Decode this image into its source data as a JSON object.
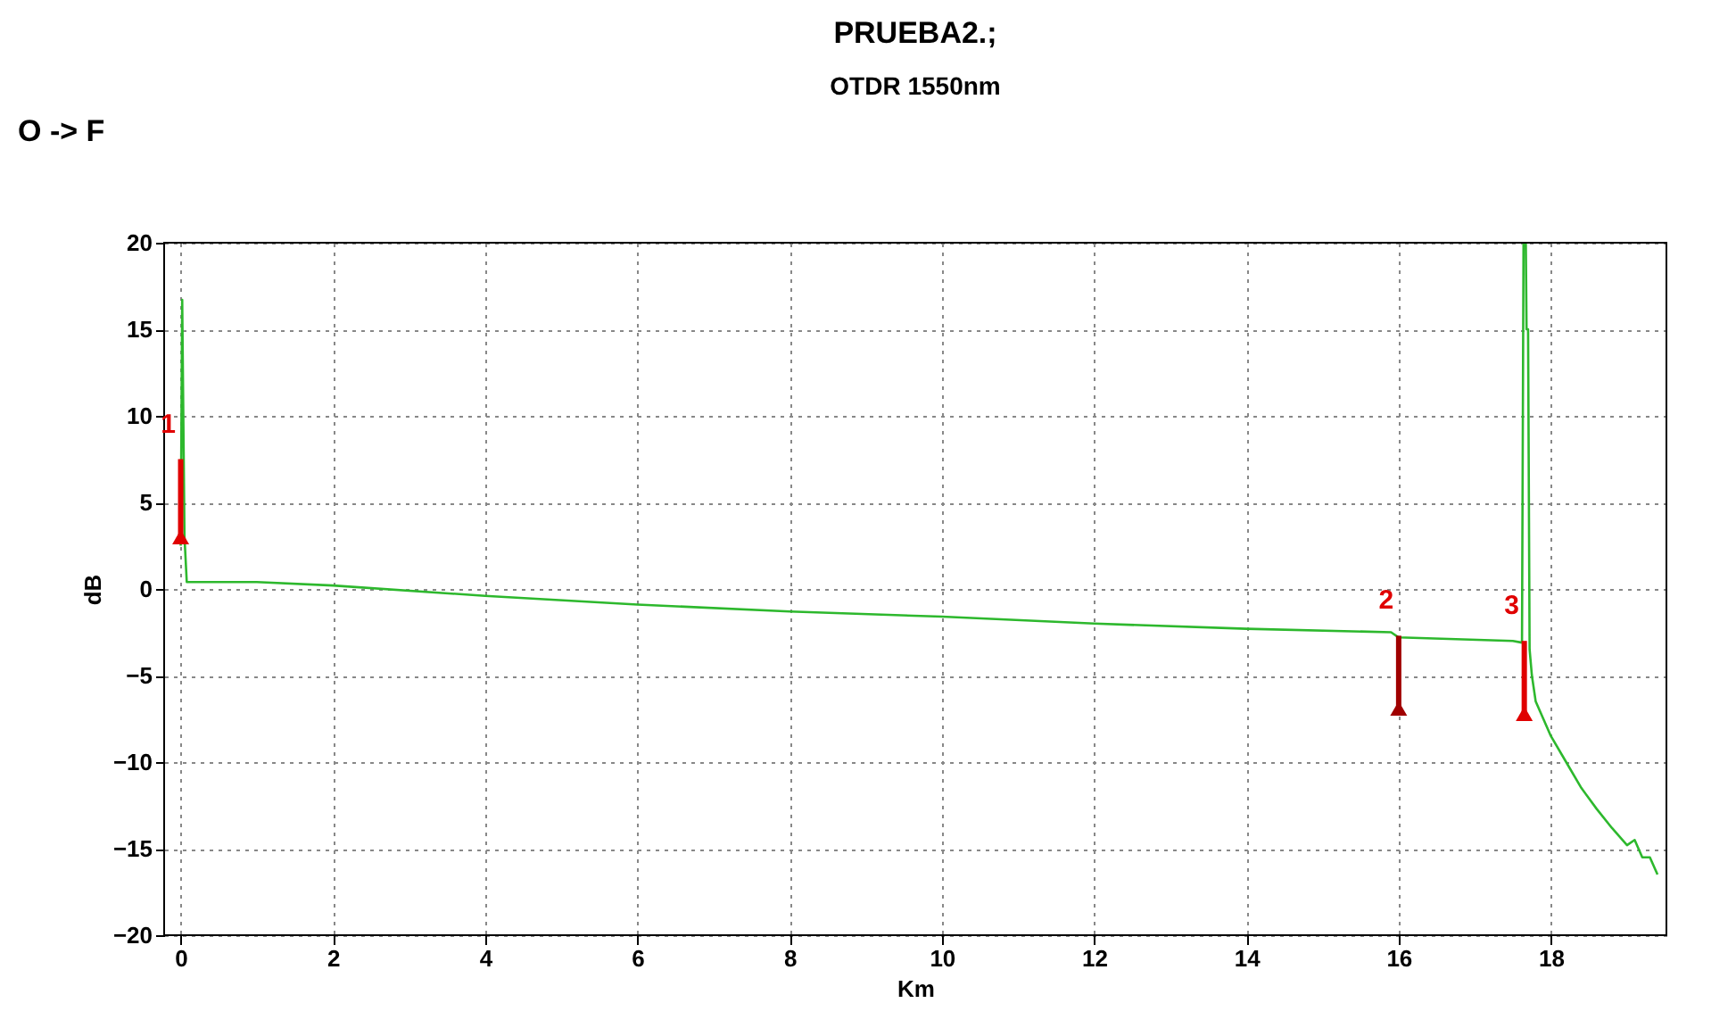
{
  "chart_data": {
    "type": "line",
    "title": "PRUEBA2.;",
    "subtitle": "OTDR 1550nm",
    "xlabel": "Km",
    "ylabel": "dB",
    "annotations": [
      "O -> F",
      {
        "text": "1",
        "x": 0,
        "y": 7.5
      },
      {
        "text": "2",
        "x": 16,
        "y": -2.7
      },
      {
        "text": "3",
        "x": 17.65,
        "y": -3
      }
    ],
    "xlim": [
      -0.1,
      19.4
    ],
    "ylim": [
      -20,
      20
    ],
    "xticks": [
      0,
      2,
      4,
      6,
      8,
      10,
      12,
      14,
      16,
      18
    ],
    "yticks": [
      -20,
      -15,
      -10,
      -5,
      0,
      5,
      10,
      15,
      20
    ],
    "grid": true,
    "series": [
      {
        "color": "#2db82d",
        "marker": "none",
        "line_style": "solid",
        "x": [
          0.0,
          0.02,
          0.05,
          0.08,
          1,
          2,
          4,
          6,
          8,
          10,
          12,
          14,
          15.9,
          16,
          17.5,
          17.62,
          17.64,
          17.67,
          17.68,
          17.7,
          17.72,
          17.75,
          17.8,
          18,
          18.2,
          18.4,
          18.6,
          18.8,
          19.0,
          19.1,
          19.2,
          19.3,
          19.4
        ],
        "values": [
          2.5,
          16.7,
          3,
          0.4,
          0.4,
          0.2,
          -0.4,
          -0.9,
          -1.3,
          -1.6,
          -2,
          -2.3,
          -2.5,
          -2.8,
          -3,
          -3.1,
          20,
          20,
          15,
          15,
          -3.5,
          -5,
          -6.5,
          -8.5,
          -10,
          -11.5,
          -12.7,
          -13.8,
          -14.8,
          -14.5,
          -15.5,
          -15.5,
          -16.5
        ]
      },
      {
        "type": "bar",
        "colors": [
          "#e00000",
          "#a00000",
          "#e00000"
        ],
        "x": [
          0,
          16,
          17.65
        ],
        "base": [
          3,
          -6.9,
          -7.2
        ],
        "values": [
          4.5,
          4.2,
          4.2
        ]
      },
      {
        "type": "scatter",
        "marker": "triangle",
        "colors": [
          "#e00000",
          "#a00000",
          "#e00000"
        ],
        "x": [
          0,
          16,
          17.65
        ],
        "values": [
          3,
          -6.9,
          -7.2
        ]
      }
    ]
  }
}
